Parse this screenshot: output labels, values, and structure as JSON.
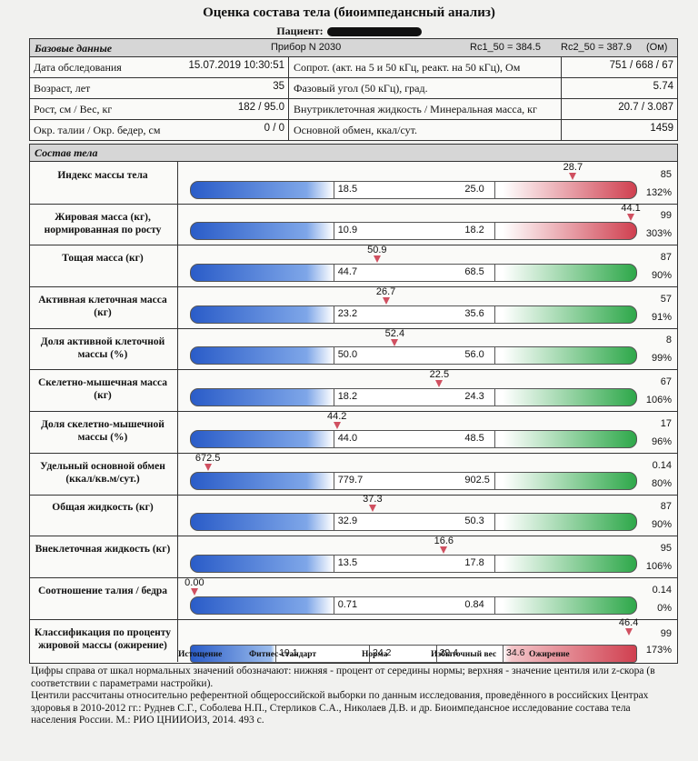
{
  "title": "Оценка состава тела (биоимпедансный анализ)",
  "patient_label": "Пациент:",
  "basic": {
    "header": "Базовые данные",
    "device": "Прибор N 2030",
    "rc1": "Rc1_50 = 384.5",
    "rc2": "Rc2_50 = 387.9",
    "unit": "(Ом)",
    "rows": [
      {
        "l1": "Дата обследования",
        "v1": "15.07.2019 10:30:51",
        "l2": "Сопрот. (акт. на 5 и 50 кГц, реакт. на 50 кГц), Ом",
        "v2": "751 / 668 / 67"
      },
      {
        "l1": "Возраст, лет",
        "v1": "35",
        "l2": "Фазовый угол (50 кГц), град.",
        "v2": "5.74"
      },
      {
        "l1": "Рост, см / Вес, кг",
        "v1": "182 / 95.0",
        "l2": "Внутриклеточная жидкость / Минеральная масса, кг",
        "v2": "20.7 / 3.087"
      },
      {
        "l1": "Окр. талии / Окр. бедер, см",
        "v1": "0 / 0",
        "l2": "Основной обмен, ккал/сут.",
        "v2": "1459"
      }
    ]
  },
  "composition": {
    "header": "Состав тела",
    "rows": [
      {
        "name": "Индекс массы тела",
        "lo": "18.5",
        "hi": "25.0",
        "value": "28.7",
        "marker_frac": 0.86,
        "right_top": "85",
        "right_bot": "132%",
        "color": "#d04050"
      },
      {
        "name": "Жировая масса (кг), нормированная по росту",
        "lo": "10.9",
        "hi": "18.2",
        "value": "44.1",
        "marker_frac": 0.99,
        "right_top": "99",
        "right_bot": "303%",
        "color": "#d04050"
      },
      {
        "name": "Тощая масса (кг)",
        "lo": "44.7",
        "hi": "68.5",
        "value": "50.9",
        "marker_frac": 0.42,
        "right_top": "87",
        "right_bot": "90%",
        "color": "#2ea84a"
      },
      {
        "name": "Активная клеточная масса (кг)",
        "lo": "23.2",
        "hi": "35.6",
        "value": "26.7",
        "marker_frac": 0.44,
        "right_top": "57",
        "right_bot": "91%",
        "color": "#2ea84a"
      },
      {
        "name": "Доля активной клеточной массы (%)",
        "lo": "50.0",
        "hi": "56.0",
        "value": "52.4",
        "marker_frac": 0.46,
        "right_top": "8",
        "right_bot": "99%",
        "color": "#2ea84a"
      },
      {
        "name": "Скелетно-мышечная масса (кг)",
        "lo": "18.2",
        "hi": "24.3",
        "value": "22.5",
        "marker_frac": 0.56,
        "right_top": "67",
        "right_bot": "106%",
        "color": "#2ea84a"
      },
      {
        "name": "Доля скелетно-мышечной массы (%)",
        "lo": "44.0",
        "hi": "48.5",
        "value": "44.2",
        "marker_frac": 0.33,
        "right_top": "17",
        "right_bot": "96%",
        "color": "#2ea84a"
      },
      {
        "name": "Удельный основной обмен (ккал/кв.м/сут.)",
        "lo": "779.7",
        "hi": "902.5",
        "value": "672.5",
        "marker_frac": 0.04,
        "right_top": "0.14",
        "right_bot": "80%",
        "color": "#2ea84a"
      },
      {
        "name": "Общая жидкость (кг)",
        "lo": "32.9",
        "hi": "50.3",
        "value": "37.3",
        "marker_frac": 0.41,
        "right_top": "87",
        "right_bot": "90%",
        "color": "#2ea84a"
      },
      {
        "name": "Внеклеточная жидкость (кг)",
        "lo": "13.5",
        "hi": "17.8",
        "value": "16.6",
        "marker_frac": 0.57,
        "right_top": "95",
        "right_bot": "106%",
        "color": "#2ea84a"
      },
      {
        "name": "Соотношение талия / бедра",
        "lo": "0.71",
        "hi": "0.84",
        "value": "0.00",
        "marker_frac": 0.01,
        "right_top": "0.14",
        "right_bot": "0%",
        "color": "#2ea84a"
      }
    ],
    "classification": {
      "name": "Классификация по проценту жировой массы (ожирение)",
      "segments": [
        "19.1",
        "24.2",
        "29.4",
        "34.6"
      ],
      "value": "46.4",
      "right_top": "99",
      "right_bot": "173%",
      "labels": [
        "Истощение",
        "Фитнес-стандарт",
        "Норма",
        "Избыточный вес",
        "Ожирение"
      ]
    }
  },
  "footer": [
    "Цифры справа от шкал нормальных значений обозначают: нижняя - процент от середины нормы; верхняя - значение центиля или z-скора (в соответствии с параметрами настройки).",
    "Центили рассчитаны относительно референтной общероссийской выборки по данным исследования, проведённого в российских Центрах здоровья в 2010-2012 гг.: Руднев С.Г., Соболева Н.П., Стерликов С.А., Николаев Д.В. и др. Биоимпедансное исследование состава тела населения России. М.: РИО ЦНИИОИЗ, 2014. 493 с."
  ]
}
